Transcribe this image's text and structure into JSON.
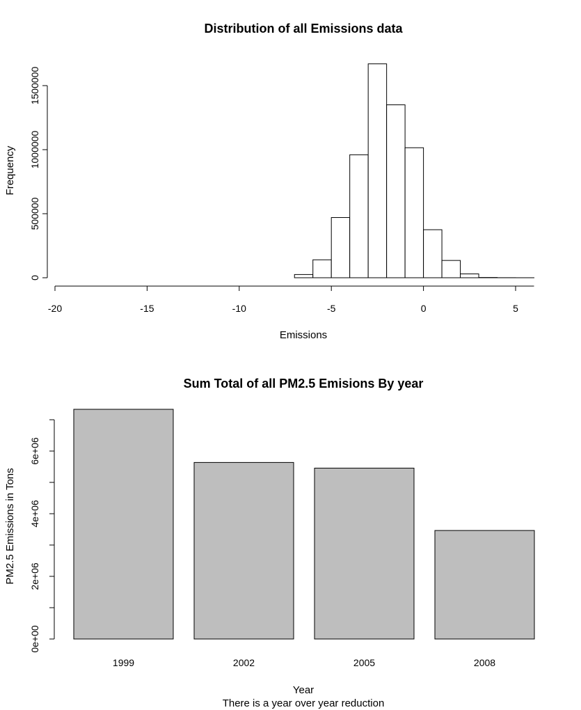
{
  "chart_data": [
    {
      "type": "bar",
      "subtype": "histogram",
      "title": "Distribution of all Emissions data",
      "xlabel": "Emissions",
      "ylabel": "Frequency",
      "bin_width": 1,
      "bins": [
        {
          "from": -19,
          "to": -18,
          "value": 0
        },
        {
          "from": -18,
          "to": -17,
          "value": 0
        },
        {
          "from": -17,
          "to": -16,
          "value": 0
        },
        {
          "from": -16,
          "to": -15,
          "value": 0
        },
        {
          "from": -15,
          "to": -14,
          "value": 0
        },
        {
          "from": -14,
          "to": -13,
          "value": 0
        },
        {
          "from": -13,
          "to": -12,
          "value": 0
        },
        {
          "from": -12,
          "to": -11,
          "value": 0
        },
        {
          "from": -11,
          "to": -10,
          "value": 0
        },
        {
          "from": -10,
          "to": -9,
          "value": 0
        },
        {
          "from": -9,
          "to": -8,
          "value": 0
        },
        {
          "from": -8,
          "to": -7,
          "value": 0
        },
        {
          "from": -7,
          "to": -6,
          "value": 25000
        },
        {
          "from": -6,
          "to": -5,
          "value": 140000
        },
        {
          "from": -5,
          "to": -4,
          "value": 470000
        },
        {
          "from": -4,
          "to": -3,
          "value": 960000
        },
        {
          "from": -3,
          "to": -2,
          "value": 1670000
        },
        {
          "from": -2,
          "to": -1,
          "value": 1350000
        },
        {
          "from": -1,
          "to": 0,
          "value": 1015000
        },
        {
          "from": 0,
          "to": 1,
          "value": 375000
        },
        {
          "from": 1,
          "to": 2,
          "value": 135000
        },
        {
          "from": 2,
          "to": 3,
          "value": 30000
        },
        {
          "from": 3,
          "to": 4,
          "value": 2000
        },
        {
          "from": 4,
          "to": 5,
          "value": 500
        },
        {
          "from": 5,
          "to": 6,
          "value": 100
        }
      ],
      "xlim": [
        -20,
        6
      ],
      "ylim": [
        0,
        1700000
      ],
      "x_ticks": [
        -20,
        -15,
        -10,
        -5,
        0,
        5
      ],
      "x_tick_labels": [
        "-20",
        "-15",
        "-10",
        "-5",
        "0",
        "5"
      ],
      "y_ticks": [
        0,
        500000,
        1000000,
        1500000
      ],
      "y_tick_labels": [
        "0",
        "500000",
        "1000000",
        "1500000"
      ],
      "grid": false,
      "bar_fill": "#ffffff",
      "bar_stroke": "#000000"
    },
    {
      "type": "bar",
      "title": "Sum Total of all PM2.5 Emisions By year",
      "xlabel": "Year",
      "ylabel": "PM2.5 Emissions in Tons",
      "subtitle": "There is a year over year reduction",
      "categories": [
        "1999",
        "2002",
        "2005",
        "2008"
      ],
      "values": [
        7332967,
        5635780,
        5454703,
        3464206
      ],
      "ylim": [
        0,
        7000000
      ],
      "y_ticks": [
        0,
        1000000,
        2000000,
        3000000,
        4000000,
        5000000,
        6000000,
        7000000
      ],
      "y_tick_labels": [
        "0e+00",
        "",
        "2e+06",
        "",
        "4e+06",
        "",
        "6e+06",
        ""
      ],
      "grid": false,
      "bar_fill": "#bebebe",
      "bar_stroke": "#000000"
    }
  ]
}
